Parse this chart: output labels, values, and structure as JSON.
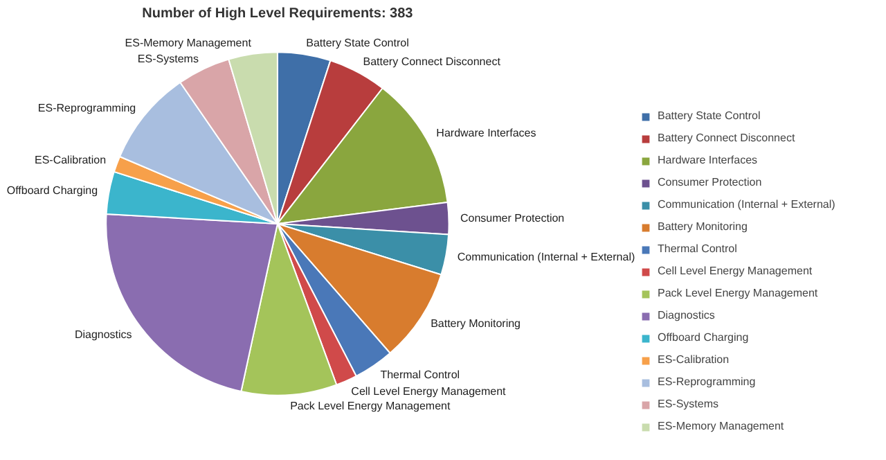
{
  "chart_data": {
    "type": "pie",
    "title": "Number of High Level Requirements: 383",
    "categories": [
      "Battery State Control",
      "Battery Connect Disconnect",
      "Hardware Interfaces",
      "Consumer Protection",
      "Communication (Internal + External)",
      "Battery Monitoring",
      "Thermal Control",
      "Cell Level Energy Management",
      "Pack Level Energy Management",
      "Diagnostics",
      "Offboard Charging",
      "ES-Calibration",
      "ES-Reprogramming",
      "ES-Systems",
      "ES-Memory Management"
    ],
    "values": [
      5.0,
      5.5,
      12.5,
      3.0,
      3.8,
      8.8,
      3.8,
      2.0,
      9.0,
      22.5,
      4.0,
      1.5,
      9.0,
      5.0,
      4.6
    ],
    "colors": [
      "#3f6fa8",
      "#b83d3d",
      "#8aa63e",
      "#6d518f",
      "#3b8fa8",
      "#d87c2e",
      "#4a78b8",
      "#d04a4a",
      "#a4c45a",
      "#8a6db0",
      "#3bb5cc",
      "#f7a04a",
      "#a8bedf",
      "#d9a5a8",
      "#c9dcae"
    ],
    "legend": "right"
  }
}
